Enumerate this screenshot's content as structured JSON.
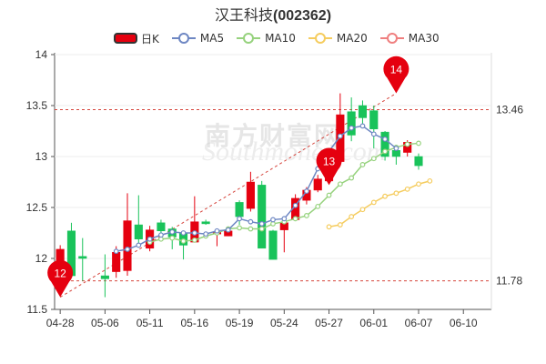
{
  "title": {
    "name": "汉王科技",
    "code": "(002362)"
  },
  "watermark": {
    "text": "南方财富网",
    "url": "Southmoney.com"
  },
  "legend": [
    {
      "label": "日K",
      "kind": "k",
      "color": "#e5000f"
    },
    {
      "label": "MA5",
      "kind": "ma",
      "color": "#6e87c3"
    },
    {
      "label": "MA10",
      "kind": "ma",
      "color": "#96d27d"
    },
    {
      "label": "MA20",
      "kind": "ma",
      "color": "#f5cc5e"
    },
    {
      "label": "MA30",
      "kind": "ma",
      "color": "#ef7f7f"
    }
  ],
  "chart_data": {
    "type": "candlestick",
    "ylim": [
      11.5,
      14.0
    ],
    "yticks": [
      "11.5",
      "12",
      "12.5",
      "13",
      "13.5",
      "14"
    ],
    "xticks": [
      {
        "label": "04-28",
        "index": 0
      },
      {
        "label": "05-06",
        "index": 4
      },
      {
        "label": "05-11",
        "index": 8
      },
      {
        "label": "05-16",
        "index": 12
      },
      {
        "label": "05-19",
        "index": 16
      },
      {
        "label": "05-24",
        "index": 20
      },
      {
        "label": "05-27",
        "index": 24
      },
      {
        "label": "06-01",
        "index": 28
      },
      {
        "label": "06-07",
        "index": 32
      },
      {
        "label": "06-10",
        "index": 36
      }
    ],
    "candles": [
      {
        "o": 11.97,
        "c": 12.09,
        "h": 12.13,
        "l": 11.76
      },
      {
        "o": 12.27,
        "c": 11.83,
        "h": 12.35,
        "l": 11.83
      },
      {
        "o": 12.02,
        "c": 12.0,
        "h": 12.2,
        "l": 11.78
      },
      {
        "o": 11.83,
        "c": 11.8,
        "h": 12.04,
        "l": 11.62
      },
      {
        "o": 11.87,
        "c": 12.06,
        "h": 12.12,
        "l": 11.81
      },
      {
        "o": 11.88,
        "c": 12.37,
        "h": 12.64,
        "l": 11.83
      },
      {
        "o": 12.33,
        "c": 12.19,
        "h": 12.62,
        "l": 12.15
      },
      {
        "o": 12.1,
        "c": 12.28,
        "h": 12.32,
        "l": 12.07
      },
      {
        "o": 12.35,
        "c": 12.27,
        "h": 12.38,
        "l": 12.24
      },
      {
        "o": 12.29,
        "c": 12.21,
        "h": 12.31,
        "l": 12.09
      },
      {
        "o": 12.25,
        "c": 12.13,
        "h": 12.27,
        "l": 11.99
      },
      {
        "o": 12.16,
        "c": 12.36,
        "h": 12.61,
        "l": 12.16
      },
      {
        "o": 12.36,
        "c": 12.34,
        "h": 12.38,
        "l": 12.33
      },
      {
        "o": 12.24,
        "c": 12.26,
        "h": 12.26,
        "l": 12.12
      },
      {
        "o": 12.22,
        "c": 12.27,
        "h": 12.3,
        "l": 12.22
      },
      {
        "o": 12.55,
        "c": 12.41,
        "h": 12.57,
        "l": 12.33
      },
      {
        "o": 12.49,
        "c": 12.75,
        "h": 12.85,
        "l": 12.46
      },
      {
        "o": 12.72,
        "c": 12.1,
        "h": 12.76,
        "l": 12.1
      },
      {
        "o": 12.27,
        "c": 11.99,
        "h": 12.28,
        "l": 11.99
      },
      {
        "o": 12.28,
        "c": 12.35,
        "h": 12.38,
        "l": 12.06
      },
      {
        "o": 12.38,
        "c": 12.59,
        "h": 12.63,
        "l": 12.37
      },
      {
        "o": 12.57,
        "c": 12.67,
        "h": 12.7,
        "l": 12.53
      },
      {
        "o": 12.67,
        "c": 12.78,
        "h": 12.82,
        "l": 12.65
      },
      {
        "o": 12.76,
        "c": 12.93,
        "h": 13.07,
        "l": 12.73
      },
      {
        "o": 12.95,
        "c": 13.41,
        "h": 13.62,
        "l": 12.93
      },
      {
        "o": 13.44,
        "c": 13.21,
        "h": 13.58,
        "l": 13.15
      },
      {
        "o": 13.5,
        "c": 13.38,
        "h": 13.55,
        "l": 13.32
      },
      {
        "o": 13.45,
        "c": 13.27,
        "h": 13.5,
        "l": 13.08
      },
      {
        "o": 13.24,
        "c": 13.0,
        "h": 13.25,
        "l": 12.96
      },
      {
        "o": 13.06,
        "c": 13.0,
        "h": 13.11,
        "l": 12.92
      },
      {
        "o": 13.04,
        "c": 13.14,
        "h": 13.16,
        "l": 13.0
      },
      {
        "o": 13.0,
        "c": 12.91,
        "h": 13.03,
        "l": 12.87
      }
    ],
    "candle_start_index": [
      0,
      1,
      2,
      4,
      5,
      6,
      7,
      8,
      9,
      10,
      11,
      12,
      13,
      14,
      15,
      16,
      17,
      18,
      19,
      20,
      21,
      22,
      23,
      24,
      25,
      26,
      27,
      28,
      29,
      30,
      31,
      32
    ],
    "ma5": [
      12.07,
      12.09,
      12.13,
      12.19,
      12.23,
      12.26,
      12.25,
      12.25,
      12.24,
      12.27,
      12.28,
      12.39,
      12.36,
      12.34,
      12.38,
      12.39,
      12.52,
      12.66,
      12.88,
      13.05,
      13.2,
      13.28,
      13.3,
      13.22,
      13.17,
      13.08
    ],
    "ma5_start_index": 5,
    "ma10": [
      12.16,
      12.19,
      12.2,
      12.17,
      12.18,
      12.22,
      12.25,
      12.29,
      12.3,
      12.29,
      12.29,
      12.34,
      12.36,
      12.39,
      12.42,
      12.51,
      12.62,
      12.73,
      12.79,
      12.92,
      12.98,
      13.05,
      13.09,
      13.12,
      13.13
    ],
    "ma10_start_index": 8,
    "ma20": [
      12.31,
      12.33,
      12.41,
      12.48,
      12.55,
      12.61,
      12.64,
      12.68,
      12.73,
      12.76
    ],
    "ma20_start_index": 24,
    "markers": [
      {
        "label": "12",
        "index": 0,
        "value": 11.62,
        "color": "#e5000f"
      },
      {
        "label": "13",
        "index": 24,
        "value": 12.72,
        "color": "#e5000f"
      },
      {
        "label": "14",
        "index": 30,
        "value": 13.62,
        "color": "#e5000f"
      }
    ],
    "hlines": [
      {
        "label": "13.46",
        "value": 13.46
      },
      {
        "label": "11.78",
        "value": 11.78
      }
    ],
    "trend_line": {
      "from": {
        "index": 0,
        "value": 11.62
      },
      "to": {
        "index": 30,
        "value": 13.62
      }
    },
    "up_color": "#e5000f",
    "down_color": "#19c35a"
  }
}
